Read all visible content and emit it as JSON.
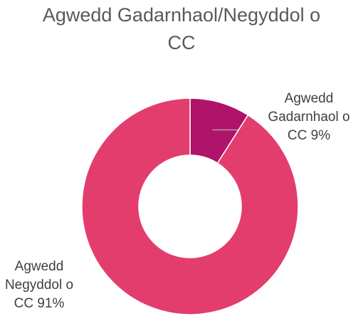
{
  "chart_data": {
    "type": "donut",
    "title": "Agwedd Gadarnhaol/Negyddol o CC",
    "categories": [
      "Agwedd Gadarnhaol o CC",
      "Agwedd Negyddol o CC"
    ],
    "values": [
      9,
      91
    ],
    "value_labels": [
      "9%",
      "91%"
    ],
    "colors": [
      "#b0136a",
      "#e33d6e"
    ]
  }
}
